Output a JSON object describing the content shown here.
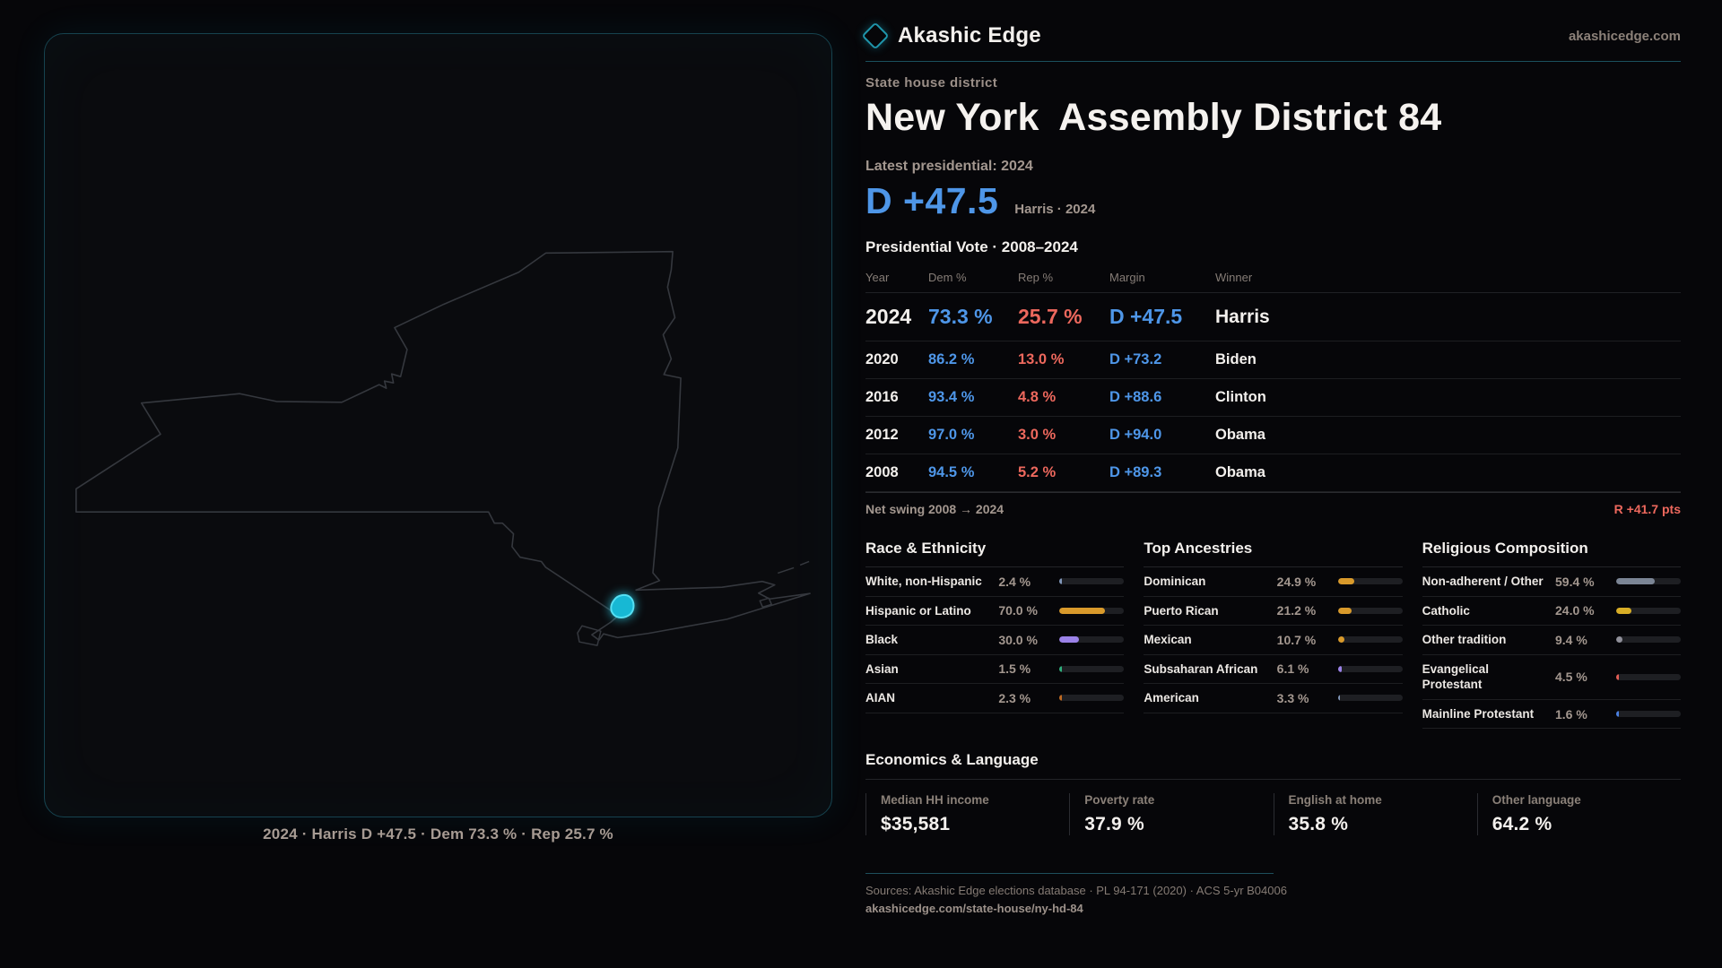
{
  "brand": {
    "name": "Akashic Edge",
    "domain": "akashicedge.com"
  },
  "header": {
    "kicker": "State house district",
    "title": "New York Assembly District 84"
  },
  "latest": {
    "label": "Latest presidential: 2024",
    "margin": "D +47.5",
    "context": "Harris · 2024"
  },
  "table": {
    "title": "Presidential Vote · 2008–2024",
    "columns": [
      "Year",
      "Dem %",
      "Rep %",
      "Margin",
      "Winner"
    ],
    "rows": [
      {
        "year": "2024",
        "dem": "73.3 %",
        "rep": "25.7 %",
        "margin": "D +47.5",
        "winner": "Harris",
        "hero": true
      },
      {
        "year": "2020",
        "dem": "86.2 %",
        "rep": "13.0 %",
        "margin": "D +73.2",
        "winner": "Biden"
      },
      {
        "year": "2016",
        "dem": "93.4 %",
        "rep": "4.8 %",
        "margin": "D +88.6",
        "winner": "Clinton"
      },
      {
        "year": "2012",
        "dem": "97.0 %",
        "rep": "3.0 %",
        "margin": "D +94.0",
        "winner": "Obama"
      },
      {
        "year": "2008",
        "dem": "94.5 %",
        "rep": "5.2 %",
        "margin": "D +89.3",
        "winner": "Obama"
      }
    ]
  },
  "net_swing": {
    "label": "Net swing 2008 → 2024",
    "value": "R +41.7 pts"
  },
  "demographics": {
    "race": {
      "title": "Race & Ethnicity",
      "items": [
        {
          "label": "White, non-Hispanic",
          "value": "2.4 %",
          "pct": 2.4,
          "color": "#8096b8"
        },
        {
          "label": "Hispanic or Latino",
          "value": "70.0 %",
          "pct": 70.0,
          "color": "#d99a2b"
        },
        {
          "label": "Black",
          "value": "30.0 %",
          "pct": 30.0,
          "color": "#9b82e8"
        },
        {
          "label": "Asian",
          "value": "1.5 %",
          "pct": 1.5,
          "color": "#2fae7c"
        },
        {
          "label": "AIAN",
          "value": "2.3 %",
          "pct": 2.3,
          "color": "#bf6a22"
        }
      ]
    },
    "ancestries": {
      "title": "Top Ancestries",
      "items": [
        {
          "label": "Dominican",
          "value": "24.9 %",
          "pct": 24.9,
          "color": "#d99a2b"
        },
        {
          "label": "Puerto Rican",
          "value": "21.2 %",
          "pct": 21.2,
          "color": "#d99a2b"
        },
        {
          "label": "Mexican",
          "value": "10.7 %",
          "pct": 10.7,
          "color": "#d99a2b"
        },
        {
          "label": "Subsaharan African",
          "value": "6.1 %",
          "pct": 6.1,
          "color": "#9b82e8"
        },
        {
          "label": "American",
          "value": "3.3 %",
          "pct": 3.3,
          "color": "#8096b8"
        }
      ]
    },
    "religion": {
      "title": "Religious Composition",
      "items": [
        {
          "label": "Non-adherent / Other",
          "value": "59.4 %",
          "pct": 59.4,
          "color": "#7b8595"
        },
        {
          "label": "Catholic",
          "value": "24.0 %",
          "pct": 24.0,
          "color": "#d9ae26"
        },
        {
          "label": "Other tradition",
          "value": "9.4 %",
          "pct": 9.4,
          "color": "#90909a"
        },
        {
          "label": "Evangelical Protestant",
          "value": "4.5 %",
          "pct": 4.5,
          "color": "#e25d55"
        },
        {
          "label": "Mainline Protestant",
          "value": "1.6 %",
          "pct": 1.6,
          "color": "#4a7fe0"
        }
      ]
    }
  },
  "economics": {
    "title": "Economics & Language",
    "stats": [
      {
        "label": "Median HH income",
        "value": "$35,581"
      },
      {
        "label": "Poverty rate",
        "value": "37.9 %"
      },
      {
        "label": "English at home",
        "value": "35.8 %"
      },
      {
        "label": "Other language",
        "value": "64.2 %"
      }
    ]
  },
  "footer": {
    "sources": "Sources: Akashic Edge elections database · PL 94-171 (2020) · ACS 5-yr B04006",
    "permalink": "akashicedge.com/state-house/ny-hd-84"
  },
  "map": {
    "caption": "2024 · Harris D +47.5 · Dem 73.3 % · Rep 25.7 %",
    "district_color": "#17b8d4"
  }
}
